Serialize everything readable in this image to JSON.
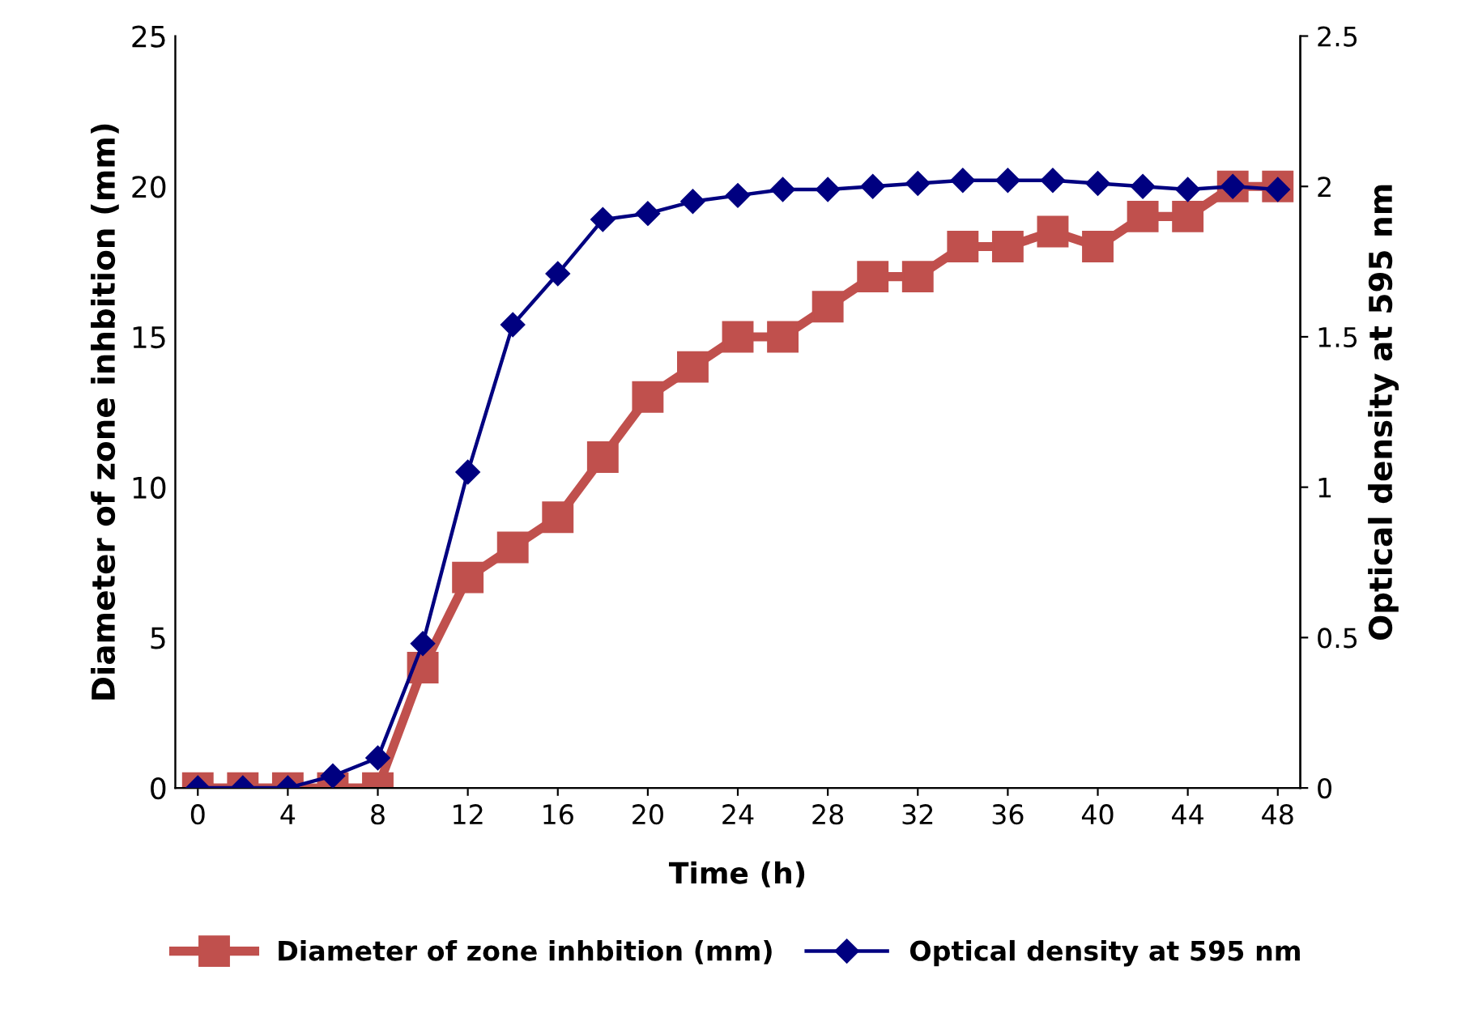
{
  "chart_data": {
    "type": "line",
    "xlabel": "Time (h)",
    "ylabel": "Diameter of zone inhbition (mm)",
    "y2label": "Optical density at 595 nm",
    "x": [
      0,
      2,
      4,
      6,
      8,
      10,
      12,
      14,
      16,
      18,
      20,
      22,
      24,
      26,
      28,
      30,
      32,
      34,
      36,
      38,
      40,
      42,
      44,
      46,
      48
    ],
    "series": [
      {
        "name": "Diameter of zone inhbition (mm)",
        "color": "#c0504d",
        "marker": "square",
        "values": [
          0,
          0,
          0,
          0,
          0,
          4,
          7,
          8,
          9,
          11,
          13,
          14,
          15,
          15,
          16,
          17,
          17,
          18,
          18,
          18.5,
          18,
          19,
          19,
          20,
          20
        ]
      },
      {
        "name": "Optical density at 595 nm",
        "color": "#000080",
        "marker": "diamond",
        "axis": "y2",
        "values": [
          0,
          0,
          0,
          0.04,
          0.1,
          0.48,
          1.05,
          1.54,
          1.71,
          1.89,
          1.91,
          1.95,
          1.97,
          1.99,
          1.99,
          2.0,
          2.01,
          2.02,
          2.02,
          2.02,
          2.01,
          2.0,
          1.99,
          2.0,
          1.99
        ]
      }
    ],
    "xlim": [
      -1,
      49
    ],
    "xticks": [
      0,
      4,
      8,
      12,
      16,
      20,
      24,
      28,
      32,
      36,
      40,
      44,
      48
    ],
    "ylim": [
      0,
      25
    ],
    "yticks": [
      0,
      5,
      10,
      15,
      20,
      25
    ],
    "y2lim": [
      0,
      2.5
    ],
    "y2ticks": [
      0,
      0.5,
      1,
      1.5,
      2,
      2.5
    ],
    "grid": false,
    "legend": "bottom",
    "line_style": "solid"
  }
}
